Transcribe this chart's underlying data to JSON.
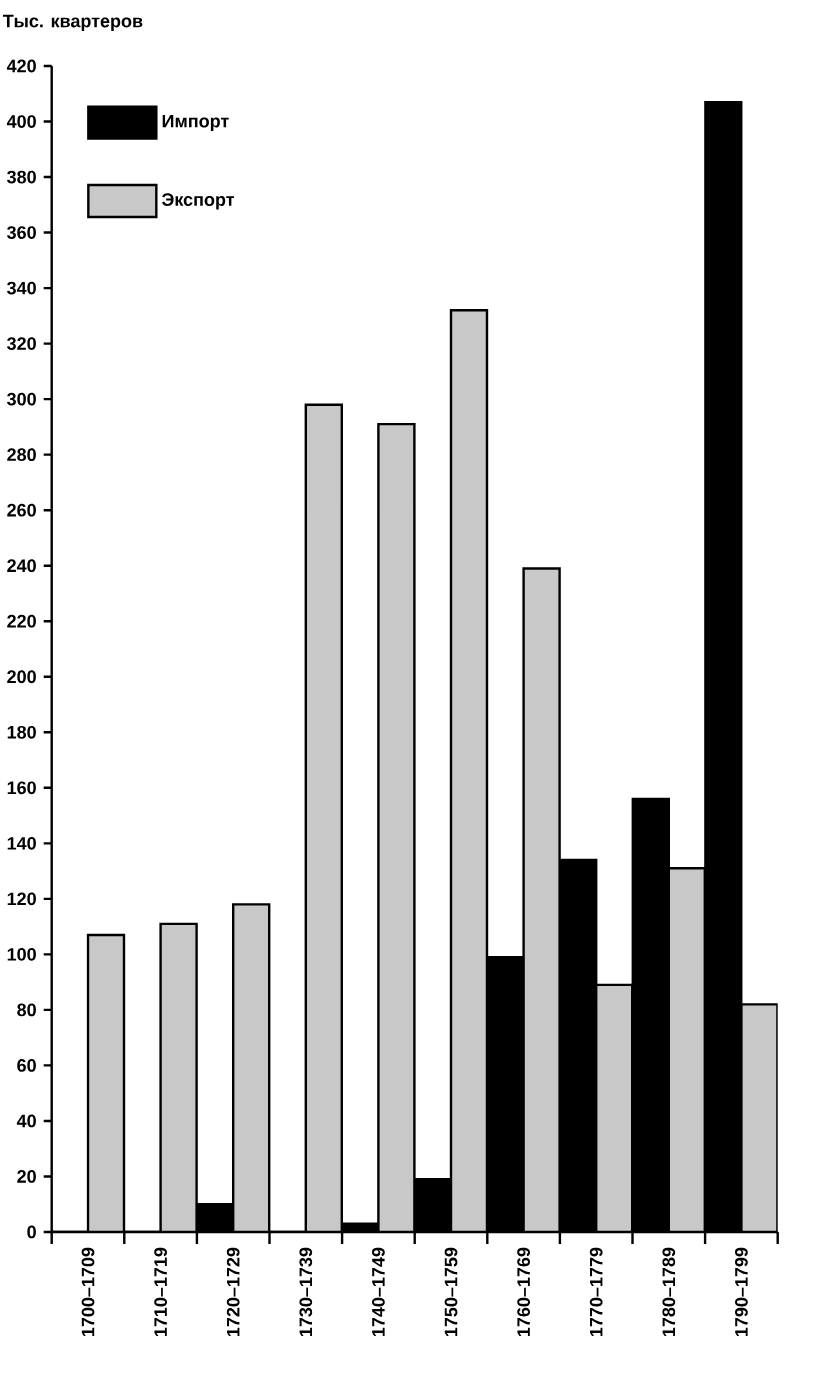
{
  "chart_data": {
    "type": "bar",
    "ylabel": "Тыс. квартеров",
    "categories": [
      "1700–1709",
      "1710–1719",
      "1720–1729",
      "1730–1739",
      "1740–1749",
      "1750–1759",
      "1760–1769",
      "1770–1779",
      "1780–1789",
      "1790–1799"
    ],
    "series": [
      {
        "name": "Импорт",
        "color": "#000000",
        "values": [
          0,
          0,
          10,
          0,
          3,
          19,
          99,
          134,
          156,
          407
        ]
      },
      {
        "name": "Экспорт",
        "color": "#c8c8c8",
        "values": [
          107,
          111,
          118,
          298,
          291,
          332,
          239,
          89,
          131,
          82
        ]
      }
    ],
    "ylim": [
      0,
      420
    ],
    "yticks": [
      0,
      20,
      40,
      60,
      80,
      100,
      120,
      140,
      160,
      180,
      200,
      220,
      240,
      260,
      280,
      300,
      320,
      340,
      360,
      380,
      400,
      420
    ],
    "legend": "top left",
    "grid": false
  }
}
